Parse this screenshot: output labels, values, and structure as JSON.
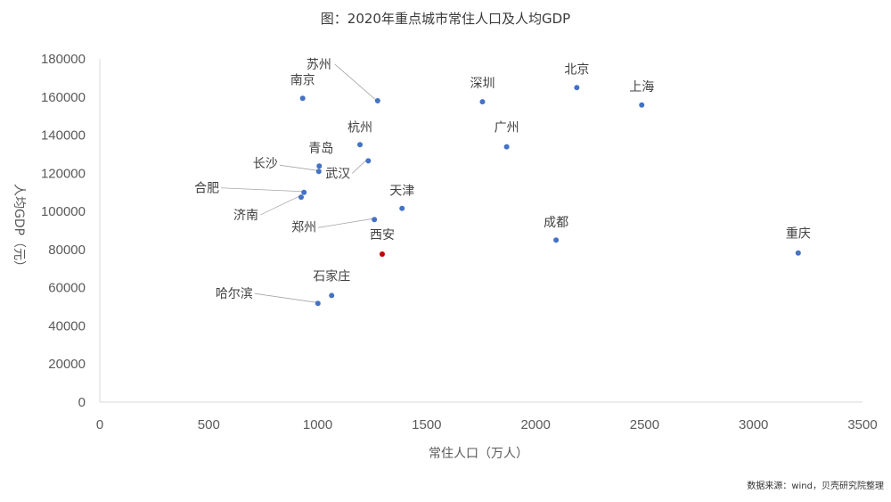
{
  "chart_data": {
    "type": "scatter",
    "title": "图：2020年重点城市常住人口及人均GDP",
    "xlabel": "常住人口（万人）",
    "ylabel": "人均GDP（元）",
    "xlim": [
      0,
      3500
    ],
    "ylim": [
      0,
      180000
    ],
    "x_ticks": [
      0,
      500,
      1000,
      1500,
      2000,
      2500,
      3000,
      3500
    ],
    "y_ticks": [
      0,
      20000,
      40000,
      60000,
      80000,
      100000,
      120000,
      140000,
      160000,
      180000
    ],
    "grid": false,
    "legend": "none",
    "default_color": "#4472c4",
    "highlight_color": "#c00000",
    "points": [
      {
        "label": "苏州",
        "x": 1275,
        "y": 158000
      },
      {
        "label": "南京",
        "x": 931,
        "y": 159300
      },
      {
        "label": "深圳",
        "x": 1756,
        "y": 157500
      },
      {
        "label": "北京",
        "x": 2189,
        "y": 164900
      },
      {
        "label": "上海",
        "x": 2487,
        "y": 155800
      },
      {
        "label": "杭州",
        "x": 1194,
        "y": 135000
      },
      {
        "label": "广州",
        "x": 1867,
        "y": 133900
      },
      {
        "label": "青岛",
        "x": 1007,
        "y": 123800
      },
      {
        "label": "长沙",
        "x": 1005,
        "y": 121000
      },
      {
        "label": "武汉",
        "x": 1232,
        "y": 126500
      },
      {
        "label": "合肥",
        "x": 937,
        "y": 110000
      },
      {
        "label": "济南",
        "x": 924,
        "y": 107500
      },
      {
        "label": "天津",
        "x": 1387,
        "y": 101600
      },
      {
        "label": "郑州",
        "x": 1260,
        "y": 95700
      },
      {
        "label": "成都",
        "x": 2094,
        "y": 85000
      },
      {
        "label": "重庆",
        "x": 3205,
        "y": 78200
      },
      {
        "label": "西安",
        "x": 1296,
        "y": 77600,
        "highlight": true
      },
      {
        "label": "石家庄",
        "x": 1064,
        "y": 55900
      },
      {
        "label": "哈尔滨",
        "x": 1001,
        "y": 51800
      }
    ],
    "source": "数据来源：wind，贝壳研究院整理"
  }
}
